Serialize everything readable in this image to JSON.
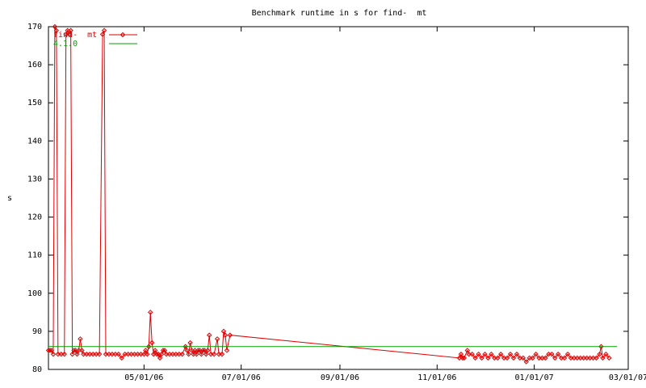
{
  "chart_data": {
    "type": "line",
    "title": "Benchmark runtime in s for find-  mt",
    "ylabel": "s",
    "xlim": [
      "03/02/06",
      "03/01/07"
    ],
    "xticks": [
      "05/01/06",
      "07/01/06",
      "09/01/06",
      "11/01/06",
      "01/01/07",
      "03/01/07"
    ],
    "ylim": [
      80,
      170
    ],
    "yticks": [
      80,
      90,
      100,
      110,
      120,
      130,
      140,
      150,
      160,
      170
    ],
    "legend": "top-left",
    "series": [
      {
        "name": "find-  mt",
        "color": "#e00000",
        "markers": true,
        "x": [
          "03/02/06",
          "03/03/06",
          "03/04/06",
          "03/05/06",
          "03/06/06",
          "03/07/06",
          "03/08/06",
          "03/10/06",
          "03/12/06",
          "03/13/06",
          "03/14/06",
          "03/15/06",
          "03/16/06",
          "03/17/06",
          "03/18/06",
          "03/19/06",
          "03/20/06",
          "03/21/06",
          "03/22/06",
          "03/23/06",
          "03/24/06",
          "03/26/06",
          "03/28/06",
          "03/30/06",
          "04/01/06",
          "04/03/06",
          "04/05/06",
          "04/06/06",
          "04/07/06",
          "04/09/06",
          "04/11/06",
          "04/13/06",
          "04/15/06",
          "04/17/06",
          "04/19/06",
          "04/21/06",
          "04/23/06",
          "04/25/06",
          "04/27/06",
          "04/29/06",
          "05/01/06",
          "05/02/06",
          "05/03/06",
          "05/04/06",
          "05/05/06",
          "05/06/06",
          "05/07/06",
          "05/08/06",
          "05/09/06",
          "05/10/06",
          "05/11/06",
          "05/12/06",
          "05/13/06",
          "05/14/06",
          "05/15/06",
          "05/17/06",
          "05/19/06",
          "05/21/06",
          "05/23/06",
          "05/25/06",
          "05/27/06",
          "05/28/06",
          "05/29/06",
          "05/30/06",
          "05/31/06",
          "06/01/06",
          "06/02/06",
          "06/03/06",
          "06/04/06",
          "06/05/06",
          "06/06/06",
          "06/07/06",
          "06/08/06",
          "06/09/06",
          "06/10/06",
          "06/11/06",
          "06/12/06",
          "06/14/06",
          "06/16/06",
          "06/17/06",
          "06/19/06",
          "06/20/06",
          "06/21/06",
          "06/22/06",
          "06/24/06",
          "11/15/06",
          "11/16/06",
          "11/17/06",
          "11/18/06",
          "11/20/06",
          "11/21/06",
          "11/23/06",
          "11/25/06",
          "11/27/06",
          "11/29/06",
          "12/01/06",
          "12/03/06",
          "12/05/06",
          "12/07/06",
          "12/09/06",
          "12/11/06",
          "12/13/06",
          "12/15/06",
          "12/17/06",
          "12/19/06",
          "12/21/06",
          "12/23/06",
          "12/25/06",
          "12/27/06",
          "12/29/06",
          "12/31/06",
          "01/02/07",
          "01/04/07",
          "01/06/07",
          "01/08/07",
          "01/10/07",
          "01/12/07",
          "01/14/07",
          "01/16/07",
          "01/18/07",
          "01/20/07",
          "01/22/07",
          "01/24/07",
          "01/26/07",
          "01/28/07",
          "01/30/07",
          "02/01/07",
          "02/03/07",
          "02/05/07",
          "02/07/07",
          "02/09/07",
          "02/11/07",
          "02/12/07",
          "02/13/07",
          "02/15/07",
          "02/17/07"
        ],
        "values": [
          85,
          85,
          85,
          84,
          170,
          169,
          84,
          84,
          84,
          168,
          169,
          168,
          169,
          84,
          85,
          85,
          84,
          85,
          88,
          85,
          84,
          84,
          84,
          84,
          84,
          84,
          168,
          169,
          84,
          84,
          84,
          84,
          84,
          83,
          84,
          84,
          84,
          84,
          84,
          84,
          84,
          85,
          84,
          86,
          95,
          87,
          84,
          85,
          84,
          84,
          83,
          84,
          85,
          85,
          84,
          84,
          84,
          84,
          84,
          84,
          86,
          85,
          84,
          87,
          85,
          84,
          85,
          84,
          85,
          85,
          84,
          85,
          85,
          84,
          85,
          89,
          84,
          84,
          88,
          84,
          84,
          90,
          89,
          85,
          89,
          83,
          84,
          83,
          83,
          85,
          84,
          84,
          83,
          84,
          83,
          84,
          83,
          84,
          83,
          83,
          84,
          83,
          83,
          84,
          83,
          84,
          83,
          83,
          82,
          83,
          83,
          84,
          83,
          83,
          83,
          84,
          84,
          83,
          84,
          83,
          83,
          84,
          83,
          83,
          83,
          83,
          83,
          83,
          83,
          83,
          83,
          84,
          86,
          83,
          84,
          83
        ]
      },
      {
        "name": "4.1.0",
        "color": "#00a000",
        "markers": false,
        "x": [
          "03/02/06",
          "02/22/07"
        ],
        "values": [
          86,
          86
        ]
      }
    ]
  }
}
